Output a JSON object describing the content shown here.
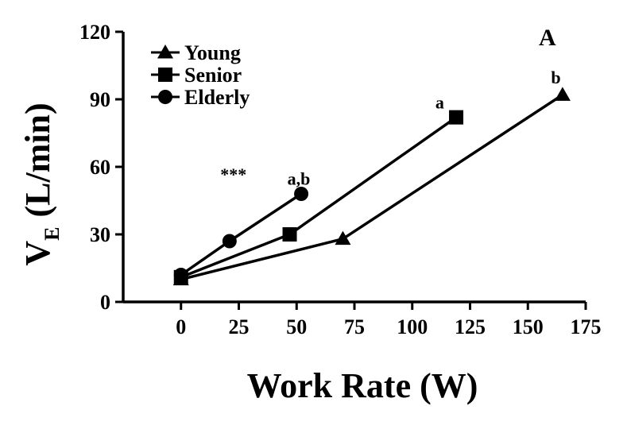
{
  "chart_data": {
    "type": "line",
    "panel_label": "A",
    "xlabel": "Work Rate (W)",
    "ylabel_main": "V",
    "ylabel_sub": "E",
    "ylabel_unit": "(L/min)",
    "xlim": [
      -25,
      175
    ],
    "ylim": [
      0,
      120
    ],
    "xticks": [
      0,
      25,
      50,
      75,
      100,
      125,
      150,
      175
    ],
    "yticks": [
      0,
      30,
      60,
      90,
      120
    ],
    "series": [
      {
        "name": "Young",
        "marker": "triangle",
        "x": [
          0,
          70,
          165
        ],
        "y": [
          10,
          28,
          92
        ]
      },
      {
        "name": "Senior",
        "marker": "square",
        "x": [
          0,
          47,
          119
        ],
        "y": [
          11,
          30,
          82
        ]
      },
      {
        "name": "Elderly",
        "marker": "circle",
        "x": [
          0,
          21,
          52
        ],
        "y": [
          12,
          27,
          48
        ]
      }
    ],
    "annotations": [
      {
        "text": "b",
        "x": 160,
        "y": 97
      },
      {
        "text": "a",
        "x": 110,
        "y": 86
      },
      {
        "text": "***",
        "x": 17,
        "y": 54
      },
      {
        "text": "a,b",
        "x": 46,
        "y": 52
      }
    ]
  }
}
